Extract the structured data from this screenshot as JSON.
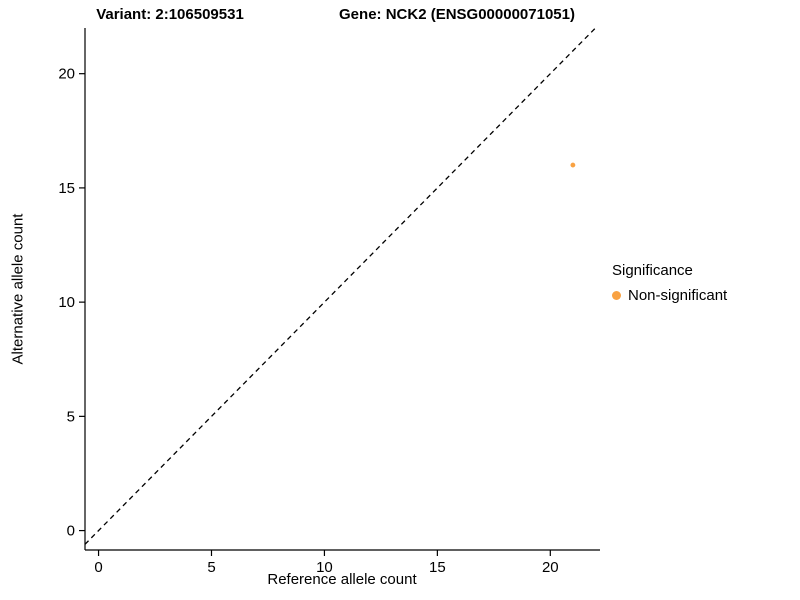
{
  "chart_data": {
    "type": "scatter",
    "title_left": "Variant: 2:106509531",
    "title_right": "Gene: NCK2 (ENSG00000071051)",
    "xlabel": "Reference allele count",
    "ylabel": "Alternative allele count",
    "xlim": [
      -0.6,
      22.2
    ],
    "ylim": [
      -0.85,
      22.0
    ],
    "x_ticks": [
      0,
      5,
      10,
      15,
      20
    ],
    "y_ticks": [
      0,
      5,
      10,
      15,
      20
    ],
    "grid": false,
    "points": [
      {
        "x": 21,
        "y": 16,
        "series": "Non-significant"
      }
    ],
    "point_color": "#F9A242",
    "point_radius": 2.4,
    "identity_line": {
      "style": "dashed",
      "color": "#000000",
      "slope": 1,
      "intercept": 0
    },
    "legend": {
      "title": "Significance",
      "position": "right",
      "items": [
        {
          "label": "Non-significant",
          "color": "#F9A242"
        }
      ]
    },
    "axis_color": "#000000",
    "text_color": "#000000",
    "tick_font_size": 15
  }
}
